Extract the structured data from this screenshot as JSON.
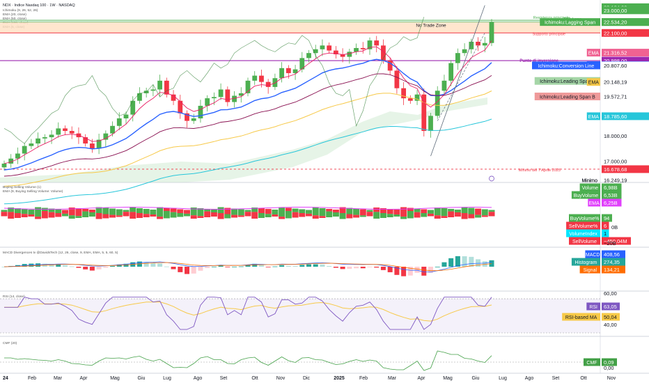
{
  "header": {
    "symbol_line": "NDX · Indice Nasdaq 100 · 1W · NASDAQ",
    "currency": "USD",
    "indicator_lines": [
      "Ichimoku (9, 26, 52, 26)",
      "EMA (20, close)",
      "EMA (50, close)",
      "EMA (100, close)",
      "EMA (5, close)"
    ]
  },
  "colors": {
    "up": "#4caf50",
    "down": "#f23645",
    "ema20": "#2962ff",
    "ema50": "#f7c948",
    "ema100": "#26c6da",
    "ema5": "#e91e63",
    "kumo_fill": "#c8e6c9",
    "lagging": "#4caf50",
    "base_line": "#880e4f",
    "resistance": "#4caf50",
    "support": "#f23645",
    "pivot": "#9c27b0",
    "no_trade_zone": "#ffe0c2"
  },
  "annotations": {
    "no_trade_zone": "No Trade Zone",
    "support": "Supporto principale",
    "resistance": "Resistenza principale",
    "tp_long": "TP1 Long",
    "pivot": "Punto di inversione",
    "april_low": "Minimo del 7 Aprile 2025",
    "massimo": "Massimo",
    "minimo": "Minimo",
    "watermark": "TV"
  },
  "price_labels": [
    {
      "text": "23.124,00",
      "bg": "#4caf50",
      "fg": "#ffffff",
      "value": 23124
    },
    {
      "text": "23.000,00",
      "bg": "#4caf50",
      "fg": "#ffffff",
      "value": 23000
    },
    {
      "text": "Massimo",
      "bg": "",
      "fg": "#131722",
      "value": 22603.22,
      "tag": true
    },
    {
      "text": "22.603,22",
      "bg": "#ffffff",
      "fg": "#131722",
      "value": 22603.22
    },
    {
      "text": "22.534,20",
      "bg": "#4caf50",
      "fg": "#ffffff",
      "value": 22534.2
    },
    {
      "text": "Ichimoku:Lagging Span",
      "bg": "#4caf50",
      "fg": "#ffffff",
      "value": 22534.2,
      "tag": true
    },
    {
      "text": "22.534,20",
      "bg": "#4caf50",
      "fg": "#ffffff",
      "value": 22534.2
    },
    {
      "text": "22.100,00",
      "bg": "#f23645",
      "fg": "#ffffff",
      "value": 22100
    },
    {
      "text": "EMA",
      "bg": "#f06292",
      "fg": "#ffffff",
      "value": 21316.52,
      "tag": true
    },
    {
      "text": "21.316,52",
      "bg": "#f06292",
      "fg": "#ffffff",
      "value": 21316.52
    },
    {
      "text": "20.998,00",
      "bg": "#9c27b0",
      "fg": "#ffffff",
      "value": 20998
    },
    {
      "text": "EMA",
      "bg": "#2962ff",
      "fg": "#ffffff",
      "value": 20820.85,
      "tag": true
    },
    {
      "text": "20.820,85",
      "bg": "#2962ff",
      "fg": "#ffffff",
      "value": 20820.85
    },
    {
      "text": "Ichimoku:Conversion Line",
      "bg": "#2962ff",
      "fg": "#ffffff",
      "value": 20807.6,
      "tag": true
    },
    {
      "text": "20.807,60",
      "bg": "#ffffff",
      "fg": "#131722",
      "value": 20807.6
    },
    {
      "text": "Ichimoku:Leading Span A",
      "bg": "#a5d6a7",
      "fg": "#131722",
      "value": 20190.15,
      "tag": true
    },
    {
      "text": "20.190,15",
      "bg": "#ffffff",
      "fg": "#131722",
      "value": 20190.15
    },
    {
      "text": "EMA",
      "bg": "#f7c948",
      "fg": "#131722",
      "value": 20148.19,
      "tag": true
    },
    {
      "text": "20.148,19",
      "bg": "#ffffff",
      "fg": "#131722",
      "value": 20148.19
    },
    {
      "text": "Ichimoku:Base Line",
      "bg": "#b71c1c",
      "fg": "#ffffff",
      "value": 19572.71,
      "tag": true
    },
    {
      "text": "19.572,71",
      "bg": "#ffffff",
      "fg": "#131722",
      "value": 19572.71
    },
    {
      "text": "Ichimoku:Leading Span B",
      "bg": "#ef9a9a",
      "fg": "#131722",
      "value": 19572.71,
      "tag": true
    },
    {
      "text": "19.572,71",
      "bg": "#ffffff",
      "fg": "#131722",
      "value": 19572.71
    },
    {
      "text": "EMA",
      "bg": "#26c6da",
      "fg": "#ffffff",
      "value": 18785.6,
      "tag": true
    },
    {
      "text": "18.785,60",
      "bg": "#26c6da",
      "fg": "#ffffff",
      "value": 18785.6
    },
    {
      "text": "18.000,00",
      "bg": "",
      "fg": "#131722",
      "value": 18000
    },
    {
      "text": "17.000,00",
      "bg": "",
      "fg": "#131722",
      "value": 17000
    },
    {
      "text": "16.678,68",
      "bg": "#f23645",
      "fg": "#ffffff",
      "value": 16678.68
    },
    {
      "text": "Minimo",
      "bg": "",
      "fg": "#131722",
      "value": 16249.19,
      "tag": true
    },
    {
      "text": "16.249,19",
      "bg": "",
      "fg": "#131722",
      "value": 16249.19
    }
  ],
  "x_axis": [
    "24",
    "Feb",
    "Mar",
    "Apr",
    "Mag",
    "Giu",
    "Lug",
    "Ago",
    "Set",
    "Ott",
    "Nov",
    "Dic",
    "2025",
    "Feb",
    "Mar",
    "Apr",
    "Mag",
    "Giu",
    "Lug",
    "Ago",
    "Set",
    "Ott",
    "Nov"
  ],
  "volume_panel": {
    "title": "Buying Selling Volume (1)",
    "subtitle": "EMA (9, Buying Selling Volume: Volume)",
    "labels": [
      {
        "tag": "Volume",
        "value": "6,98B",
        "bg": "#4caf50"
      },
      {
        "tag": "BuyVolume",
        "value": "6,53B",
        "bg": "#4caf50"
      },
      {
        "tag": "EMA",
        "value": "6,25B",
        "bg": "#e040fb"
      },
      {
        "tag": "BuyVolume%",
        "value": "94",
        "bg": "#4caf50"
      },
      {
        "tag": "SellVolume%",
        "value": "6",
        "bg": "#f23645"
      },
      {
        "tag": "VolumeIndex",
        "value": "1",
        "bg": "#00e5ff"
      },
      {
        "tag": "SellVolume",
        "value": "−450,04M",
        "bg": "#f23645"
      }
    ],
    "scale": [
      "0B",
      "−20B"
    ]
  },
  "macd_panel": {
    "title": "MACD Divergences tv @DavidsTech (12, 26, close, 9, EMA, EMA, 5, 5, 60, 5)",
    "labels": [
      {
        "tag": "MACD",
        "value": "408,56",
        "bg": "#2962ff"
      },
      {
        "tag": "Histogram",
        "value": "274,35",
        "bg": "#26a69a"
      },
      {
        "tag": "Signal",
        "value": "134,21",
        "bg": "#ff6d00"
      }
    ]
  },
  "rsi_panel": {
    "title": "RSI (14, close)",
    "labels": [
      {
        "tag": "RSI",
        "value": "63,05",
        "bg": "#7e57c2"
      },
      {
        "tag": "RSI-based MA",
        "value": "50,04",
        "bg": "#f7c948"
      }
    ],
    "scale": [
      "60,00",
      "40,00"
    ]
  },
  "cmf_panel": {
    "title": "CMF (20)",
    "labels": [
      {
        "tag": "CMF",
        "value": "0,09",
        "bg": "#43a047"
      }
    ],
    "scale": [
      "0,00"
    ]
  },
  "chart_data": {
    "type": "candlestick",
    "title": "NDX · Indice Nasdaq 100 · 1W · NASDAQ",
    "ylim": [
      16249.19,
      23124
    ],
    "series": [
      {
        "name": "EMA (20, close)",
        "last": 20820.85
      },
      {
        "name": "EMA (50, close)",
        "last": 20148.19
      },
      {
        "name": "EMA (100, close)",
        "last": 18785.6
      },
      {
        "name": "EMA (5, close)",
        "last": 21316.52
      },
      {
        "name": "Ichimoku:Conversion Line",
        "last": 20807.6
      },
      {
        "name": "Ichimoku:Base Line",
        "last": 19572.71
      },
      {
        "name": "Ichimoku:Leading Span A",
        "last": 20190.15
      },
      {
        "name": "Ichimoku:Leading Span B",
        "last": 19572.71
      },
      {
        "name": "Ichimoku:Lagging Span",
        "last": 22534.2
      }
    ],
    "levels": {
      "resistance": 22603.22,
      "tp1_long": 22534.2,
      "support": 22100,
      "pivot": 20998,
      "april_low": 16678.68,
      "no_trade_zone": [
        22100,
        22534.2
      ]
    },
    "closes": [
      16900,
      17100,
      17300,
      17600,
      17700,
      17900,
      17950,
      18050,
      18300,
      18200,
      18100,
      17950,
      17700,
      17500,
      17850,
      18100,
      18400,
      18700,
      18850,
      19400,
      19700,
      19800,
      19850,
      20200,
      19650,
      19400,
      18900,
      18600,
      18700,
      19200,
      19500,
      19550,
      19850,
      19350,
      19600,
      19700,
      20200,
      20400,
      20150,
      19950,
      20300,
      20700,
      20500,
      20650,
      21100,
      21300,
      21450,
      21600,
      21400,
      21250,
      21150,
      21350,
      21500,
      21450,
      21800,
      21600,
      21000,
      20600,
      19900,
      19500,
      19400,
      19650,
      18200,
      18800,
      19800,
      20200,
      20900,
      21300,
      21450,
      21750,
      21600,
      21700,
      22534
    ],
    "volume_note": "weekly buy/sell volume bars"
  }
}
